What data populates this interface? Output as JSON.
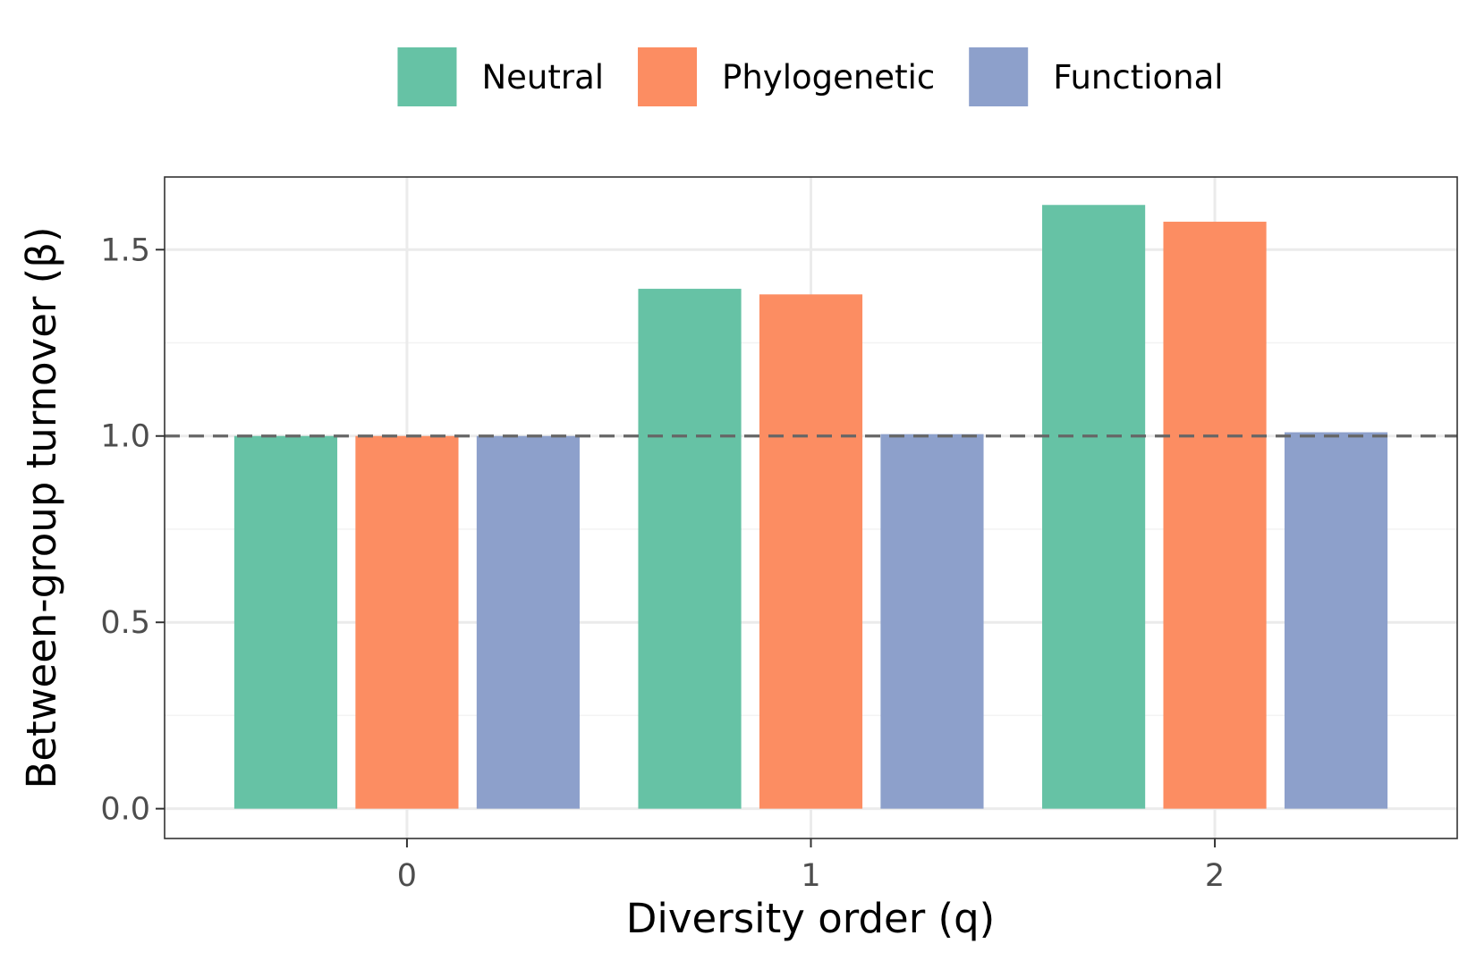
{
  "chart_data": {
    "type": "bar",
    "xlabel": "Diversity order (q)",
    "ylabel": "Between-group turnover (β)",
    "categories": [
      "0",
      "1",
      "2"
    ],
    "series": [
      {
        "name": "Neutral",
        "color": "#66c2a5",
        "values": [
          1.0,
          1.395,
          1.62
        ]
      },
      {
        "name": "Phylogenetic",
        "color": "#fc8d62",
        "values": [
          1.0,
          1.38,
          1.575
        ]
      },
      {
        "name": "Functional",
        "color": "#8da0cb",
        "values": [
          1.0,
          1.005,
          1.01
        ]
      }
    ],
    "ylim": [
      -0.08,
      1.695
    ],
    "yticks": [
      0.0,
      0.5,
      1.0,
      1.5
    ],
    "ytick_labels": [
      "0.0",
      "0.5",
      "1.0",
      "1.5"
    ],
    "reference_line": {
      "value": 1.0,
      "style": "dashed",
      "color": "#666666"
    },
    "grid": true,
    "legend_position": "top"
  }
}
